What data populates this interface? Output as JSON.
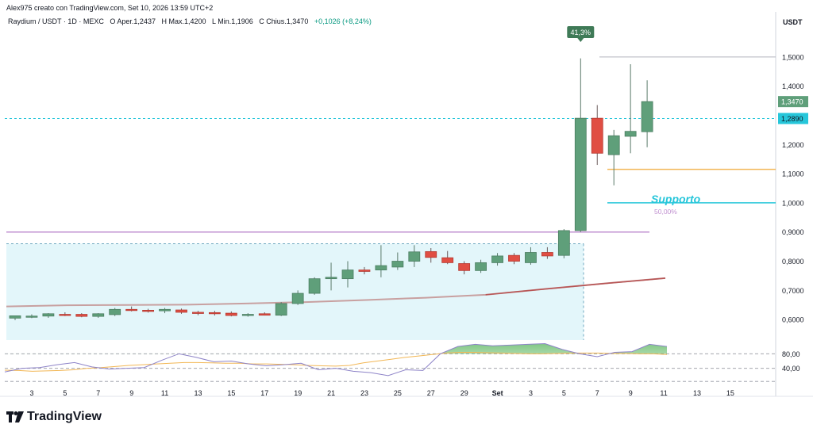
{
  "header": {
    "text": "Alex975 creato con TradingView.com, Set 10, 2026 13:59 UTC+2"
  },
  "legend": {
    "symbol": "Raydium / USDT · 1D · MEXC",
    "open_label": "O",
    "open": "Aper.1,2437",
    "high_label": "H",
    "high": "Max.1,4200",
    "low_label": "L",
    "low": "Min.1,1906",
    "close_label": "C",
    "close": "Chius.1,3470",
    "change": "+0,1026 (+8,24%)"
  },
  "brand": {
    "name": "TradingView"
  },
  "colors": {
    "up": "#5f9f7a",
    "down": "#e04e43",
    "zone": "#e3f6fa",
    "ma": "#b85555",
    "rsi": "#8e84c8",
    "rsi_ma": "#f2b756",
    "support": "#26c6da",
    "fib": "#c090d0"
  },
  "chart_data": {
    "type": "candlestick",
    "unit": "USDT",
    "y_range": [
      0.5,
      1.6
    ],
    "price_ticks": [
      "1,5000",
      "1,4000",
      "1,3000",
      "1,2000",
      "1,1000",
      "1,0000",
      "0,9000",
      "0,8000",
      "0,7000",
      "0,6000"
    ],
    "x_tick_labels": [
      "3",
      "5",
      "7",
      "9",
      "11",
      "13",
      "15",
      "17",
      "19",
      "21",
      "23",
      "25",
      "27",
      "29",
      "Set",
      "3",
      "5",
      "7",
      "9",
      "11",
      "13",
      "15"
    ],
    "candles": [
      {
        "o": 0.605,
        "h": 0.613,
        "l": 0.598,
        "c": 0.613
      },
      {
        "o": 0.612,
        "h": 0.618,
        "l": 0.605,
        "c": 0.612
      },
      {
        "o": 0.612,
        "h": 0.622,
        "l": 0.606,
        "c": 0.62
      },
      {
        "o": 0.618,
        "h": 0.625,
        "l": 0.612,
        "c": 0.617
      },
      {
        "o": 0.618,
        "h": 0.622,
        "l": 0.608,
        "c": 0.611
      },
      {
        "o": 0.611,
        "h": 0.622,
        "l": 0.606,
        "c": 0.62
      },
      {
        "o": 0.617,
        "h": 0.64,
        "l": 0.612,
        "c": 0.635
      },
      {
        "o": 0.635,
        "h": 0.645,
        "l": 0.628,
        "c": 0.632
      },
      {
        "o": 0.632,
        "h": 0.637,
        "l": 0.624,
        "c": 0.63
      },
      {
        "o": 0.63,
        "h": 0.64,
        "l": 0.622,
        "c": 0.635
      },
      {
        "o": 0.633,
        "h": 0.638,
        "l": 0.62,
        "c": 0.625
      },
      {
        "o": 0.625,
        "h": 0.63,
        "l": 0.615,
        "c": 0.622
      },
      {
        "o": 0.624,
        "h": 0.63,
        "l": 0.614,
        "c": 0.62
      },
      {
        "o": 0.622,
        "h": 0.628,
        "l": 0.611,
        "c": 0.614
      },
      {
        "o": 0.614,
        "h": 0.622,
        "l": 0.61,
        "c": 0.618
      },
      {
        "o": 0.62,
        "h": 0.625,
        "l": 0.614,
        "c": 0.615
      },
      {
        "o": 0.615,
        "h": 0.66,
        "l": 0.612,
        "c": 0.655
      },
      {
        "o": 0.655,
        "h": 0.7,
        "l": 0.65,
        "c": 0.69
      },
      {
        "o": 0.69,
        "h": 0.745,
        "l": 0.685,
        "c": 0.74
      },
      {
        "o": 0.74,
        "h": 0.795,
        "l": 0.7,
        "c": 0.745
      },
      {
        "o": 0.74,
        "h": 0.8,
        "l": 0.71,
        "c": 0.77
      },
      {
        "o": 0.77,
        "h": 0.78,
        "l": 0.755,
        "c": 0.765
      },
      {
        "o": 0.77,
        "h": 0.855,
        "l": 0.745,
        "c": 0.785
      },
      {
        "o": 0.78,
        "h": 0.83,
        "l": 0.77,
        "c": 0.8
      },
      {
        "o": 0.8,
        "h": 0.855,
        "l": 0.78,
        "c": 0.832
      },
      {
        "o": 0.833,
        "h": 0.845,
        "l": 0.795,
        "c": 0.813
      },
      {
        "o": 0.812,
        "h": 0.835,
        "l": 0.79,
        "c": 0.795
      },
      {
        "o": 0.792,
        "h": 0.8,
        "l": 0.755,
        "c": 0.768
      },
      {
        "o": 0.768,
        "h": 0.805,
        "l": 0.76,
        "c": 0.795
      },
      {
        "o": 0.795,
        "h": 0.828,
        "l": 0.785,
        "c": 0.818
      },
      {
        "o": 0.82,
        "h": 0.828,
        "l": 0.79,
        "c": 0.8
      },
      {
        "o": 0.795,
        "h": 0.848,
        "l": 0.788,
        "c": 0.83
      },
      {
        "o": 0.83,
        "h": 0.848,
        "l": 0.808,
        "c": 0.818
      },
      {
        "o": 0.82,
        "h": 0.91,
        "l": 0.81,
        "c": 0.905
      },
      {
        "o": 0.905,
        "h": 1.495,
        "l": 0.9,
        "c": 1.29
      },
      {
        "o": 1.29,
        "h": 1.335,
        "l": 1.13,
        "c": 1.17
      },
      {
        "o": 1.165,
        "h": 1.25,
        "l": 1.06,
        "c": 1.23
      },
      {
        "o": 1.228,
        "h": 1.475,
        "l": 1.17,
        "c": 1.245
      },
      {
        "o": 1.2437,
        "h": 1.42,
        "l": 1.1906,
        "c": 1.347
      }
    ],
    "moving_average": [
      0.645,
      0.649,
      0.65,
      0.651,
      0.655,
      0.66,
      0.667,
      0.675,
      0.685,
      0.705,
      0.724,
      0.742
    ],
    "levels": {
      "high_line": 1.5,
      "current_price_line": 1.289,
      "orange_line": 1.115,
      "support_line": 1.0,
      "fib_line": 0.9,
      "zone_top": 0.86,
      "zone_bottom": 0.53
    },
    "last_price_label": "1,3470",
    "current_price_label": "1,2890",
    "pct_label": "41,3%",
    "support_label": "Supporto",
    "fib_label": "50,00%",
    "rsi": {
      "ticks": [
        "80,00",
        "40,00"
      ],
      "rsi_values": [
        30,
        40,
        42,
        50,
        56,
        44,
        38,
        40,
        42,
        62,
        80,
        70,
        58,
        60,
        52,
        47,
        50,
        54,
        36,
        40,
        32,
        28,
        20,
        36,
        34,
        80,
        100,
        106,
        102,
        104,
        106,
        108,
        92,
        80,
        72,
        84,
        86,
        106,
        100
      ],
      "ma_values": [
        35,
        34,
        32,
        33,
        34,
        36,
        40,
        42,
        45,
        48,
        50,
        52,
        54,
        56,
        56,
        55,
        54,
        54,
        52,
        52,
        51,
        50,
        48,
        47,
        46,
        48,
        55,
        60,
        65,
        70,
        74,
        78,
        82,
        84,
        84,
        83,
        82,
        81,
        80,
        80,
        81,
        82,
        82,
        82,
        81,
        81,
        80,
        80,
        78
      ],
      "overbought_fill": true
    }
  }
}
